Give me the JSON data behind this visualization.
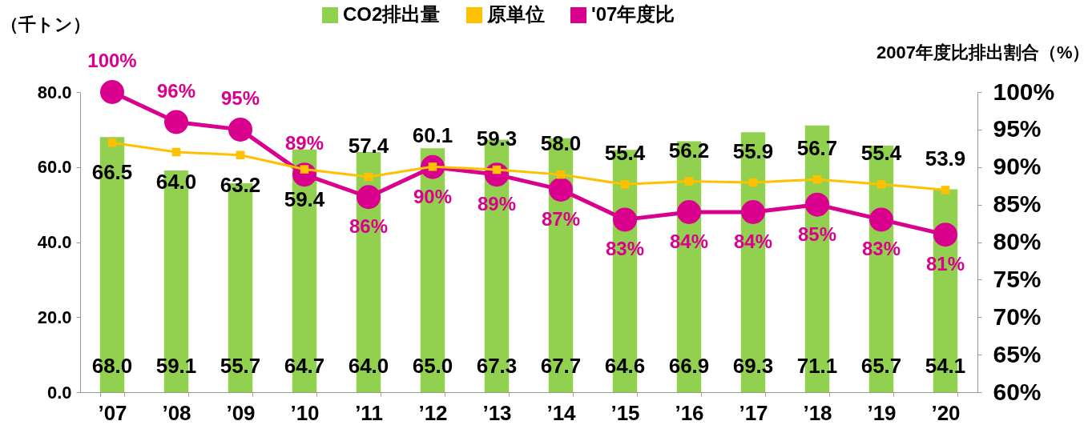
{
  "chart_data": {
    "type": "bar",
    "ylabel": "（千トン）",
    "y2label": "2007年度比排出割合（%）",
    "categories": [
      "’07",
      "’08",
      "’09",
      "’10",
      "’11",
      "’12",
      "’13",
      "’14",
      "’15",
      "’16",
      "’17",
      "’18",
      "’19",
      "’20"
    ],
    "series": [
      {
        "name": "CO2排出量",
        "color": "#92d050",
        "values": [
          68.0,
          59.1,
          55.7,
          64.7,
          64.0,
          65.0,
          67.3,
          67.7,
          64.6,
          66.9,
          69.3,
          71.1,
          65.7,
          54.1
        ],
        "value_labels": [
          "68.0",
          "59.1",
          "55.7",
          "64.7",
          "64.0",
          "65.0",
          "67.3",
          "67.7",
          "64.6",
          "66.9",
          "69.3",
          "71.1",
          "65.7",
          "54.1"
        ]
      },
      {
        "name": "原単位",
        "type": "line",
        "marker": "square",
        "color": "#ffc000",
        "values": [
          66.5,
          64.0,
          63.2,
          59.4,
          57.4,
          60.1,
          59.3,
          58.0,
          55.4,
          56.2,
          55.9,
          56.7,
          55.4,
          53.9
        ],
        "value_labels": [
          "66.5",
          "64.0",
          "63.2",
          "59.4",
          "57.4",
          "60.1",
          "59.3",
          "58.0",
          "55.4",
          "56.2",
          "55.9",
          "56.7",
          "55.4",
          "53.9"
        ]
      },
      {
        "name": "'07年度比",
        "type": "line",
        "marker": "circle",
        "axis": "y2",
        "color": "#d9008d",
        "values": [
          100,
          96,
          95,
          89,
          86,
          90,
          89,
          87,
          83,
          84,
          84,
          85,
          83,
          81
        ],
        "value_labels": [
          "100%",
          "96%",
          "95%",
          "89%",
          "86%",
          "90%",
          "89%",
          "87%",
          "83%",
          "84%",
          "84%",
          "85%",
          "83%",
          "81%"
        ]
      }
    ],
    "ylim": [
      0,
      80
    ],
    "yticks": [
      {
        "value": 0,
        "label": "0.0"
      },
      {
        "value": 20,
        "label": "20.0"
      },
      {
        "value": 40,
        "label": "40.0"
      },
      {
        "value": 60,
        "label": "60.0"
      },
      {
        "value": 80,
        "label": "80.0"
      }
    ],
    "y2lim": [
      60,
      100
    ],
    "y2ticks": [
      {
        "value": 60,
        "label": "60%"
      },
      {
        "value": 65,
        "label": "65%"
      },
      {
        "value": 70,
        "label": "70%"
      },
      {
        "value": 75,
        "label": "75%"
      },
      {
        "value": 80,
        "label": "80%"
      },
      {
        "value": 85,
        "label": "85%"
      },
      {
        "value": 90,
        "label": "90%"
      },
      {
        "value": 95,
        "label": "95%"
      },
      {
        "value": 100,
        "label": "100%"
      }
    ],
    "legend": "top",
    "grid": false
  }
}
